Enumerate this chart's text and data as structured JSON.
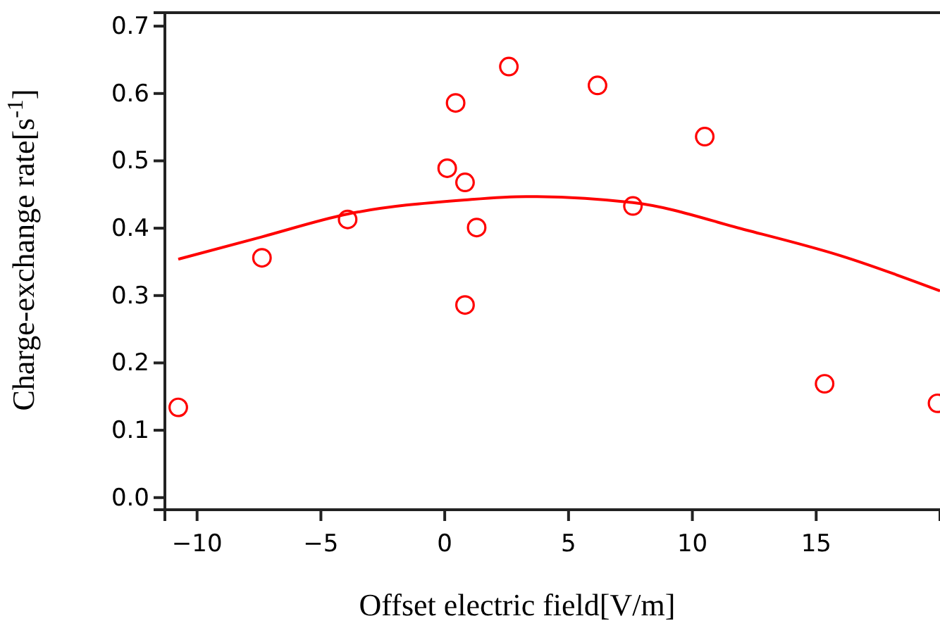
{
  "chart_data": {
    "type": "scatter",
    "xlabel": "Offset electric field[V/m]",
    "ylabel": "Charge-exchange rate[s$^{-1}$]",
    "xlim": [
      -11.3,
      20
    ],
    "ylim": [
      -0.018,
      0.72
    ],
    "xticks": [
      -10,
      -5,
      0,
      5,
      10,
      15
    ],
    "yticks": [
      {
        "value": 0,
        "label": "0.0"
      },
      0.1,
      0.2,
      0.3,
      0.4,
      0.5,
      0.6,
      0.7
    ],
    "grid": false,
    "marker": "circle",
    "series": [
      {
        "color": "#ff0000",
        "x": [
          -10.76,
          -7.38,
          -3.92,
          0.1,
          0.44,
          0.82,
          0.82,
          1.29,
          2.59,
          6.17,
          7.6,
          10.5,
          15.34,
          19.9
        ],
        "values": [
          0.134,
          0.356,
          0.413,
          0.489,
          0.586,
          0.468,
          0.286,
          0.401,
          0.64,
          0.612,
          0.433,
          0.536,
          0.169,
          0.14
        ]
      },
      {
        "type": "line",
        "color": "#ff0000",
        "marker": "none",
        "x": [
          -10.76,
          -7.4,
          -3.92,
          0.82,
          3.29,
          7.6,
          12.2,
          16,
          20
        ],
        "values": [
          0.354,
          0.387,
          0.421,
          0.442,
          0.447,
          0.438,
          0.397,
          0.359,
          0.307
        ]
      }
    ]
  }
}
